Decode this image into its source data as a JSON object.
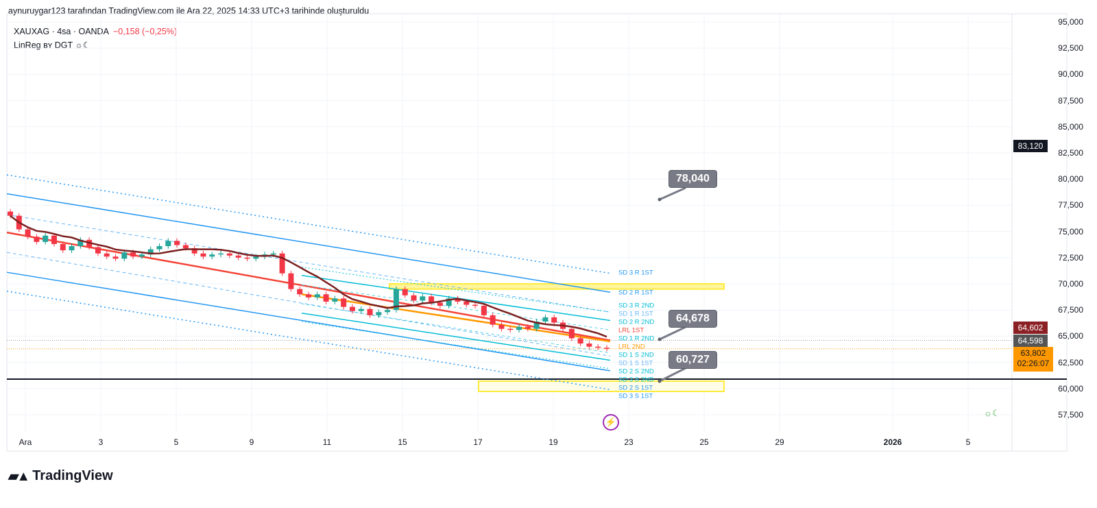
{
  "header": {
    "credit": "aynuruygar123 tarafından TradingView.com ile Ara 22, 2025 14:33 UTC+3 tarihinde oluşturuldu",
    "symbol": "XAUXAG · 4sa · OANDA",
    "change": "−0,158 (−0,25%)",
    "indicator": "LinReg ʙʏ DGT ☼☾"
  },
  "price_axis": [
    "95,000",
    "92,500",
    "90,000",
    "87,500",
    "85,000",
    "82,500",
    "80,000",
    "77,500",
    "75,000",
    "72,500",
    "70,000",
    "67,500",
    "65,000",
    "62,500",
    "60,000",
    "57,500"
  ],
  "time_axis": [
    "Ara",
    "3",
    "5",
    "9",
    "11",
    "15",
    "17",
    "19",
    "23",
    "25",
    "29",
    "2026",
    "5"
  ],
  "price_tags": {
    "high": "83,120",
    "a": "64,602",
    "b": "64,598",
    "last": "63,802",
    "countdown": "02:26:07"
  },
  "callouts": [
    "78,040",
    "64,678",
    "60,727"
  ],
  "line_labels": [
    "SD 3 R 1ST",
    "SD 2 R 1ST",
    "SD 3 R 2ND",
    "SD 1 R 1ST",
    "SD 2 R 2ND",
    "LRL 1ST",
    "SD 1 R 2ND",
    "LRL 2ND",
    "SD 1 S 2ND",
    "SD 1 S 1ST",
    "SD 2 S 2ND",
    "SD 3 S 2ND",
    "SD 2 S 1ST",
    "SD 3 S 1ST"
  ],
  "brand": "TradingView",
  "colors": {
    "up": "#089981",
    "down": "#f23645",
    "blue": "#2196f3",
    "cyan": "#00bcd4",
    "orange": "#ff9800",
    "red": "#f44336",
    "brown": "#7b1f1f",
    "yellow": "#ffeb3b"
  },
  "chart_data": {
    "type": "candlestick",
    "title": "XAUXAG · 4sa · OANDA",
    "ylim": [
      56500,
      95500
    ],
    "closes": [
      76500,
      75200,
      74500,
      74000,
      74600,
      73800,
      73200,
      73600,
      74200,
      73500,
      72900,
      72600,
      72400,
      73000,
      72600,
      72800,
      73300,
      73600,
      74100,
      73700,
      73400,
      72900,
      72600,
      72800,
      72900,
      72700,
      72500,
      72400,
      72600,
      72800,
      72900,
      71000,
      69500,
      69000,
      68700,
      69000,
      68300,
      68600,
      67800,
      67400,
      67600,
      67000,
      67300,
      67500,
      69500,
      68900,
      68400,
      68800,
      68200,
      67900,
      68600,
      68300,
      68000,
      67900,
      67000,
      66100,
      65700,
      65600,
      65900,
      65700,
      66400,
      66800,
      66300,
      65700,
      64800,
      64300,
      64000,
      63900,
      63800
    ],
    "lines": {
      "lrl_1st": [
        74900,
        64600
      ],
      "sd1_r_1st": [
        76600,
        67300
      ],
      "sd1_s_1st": [
        73000,
        63100
      ],
      "sd2_r_1st": [
        78600,
        69200
      ],
      "sd2_s_1st": [
        71100,
        61700
      ],
      "sd3_r_1st": [
        80400,
        71000
      ],
      "sd3_s_1st": [
        69300,
        59900
      ],
      "lrl_2nd": [
        69000,
        64500
      ],
      "sd1_r_2nd": [
        69900,
        65600
      ],
      "sd1_s_2nd": [
        68100,
        63400
      ],
      "sd2_r_2nd": [
        70800,
        66500
      ],
      "sd2_s_2nd": [
        67200,
        62700
      ],
      "sd3_r_2nd": [
        71600,
        67300
      ],
      "sd3_s_2nd": [
        66400,
        61900
      ]
    },
    "levels": {
      "black_line": 61000,
      "zone_top": [
        70000,
        69500
      ],
      "zone_bottom": [
        61000,
        60000
      ],
      "last": 63802,
      "prev": 64598
    }
  }
}
